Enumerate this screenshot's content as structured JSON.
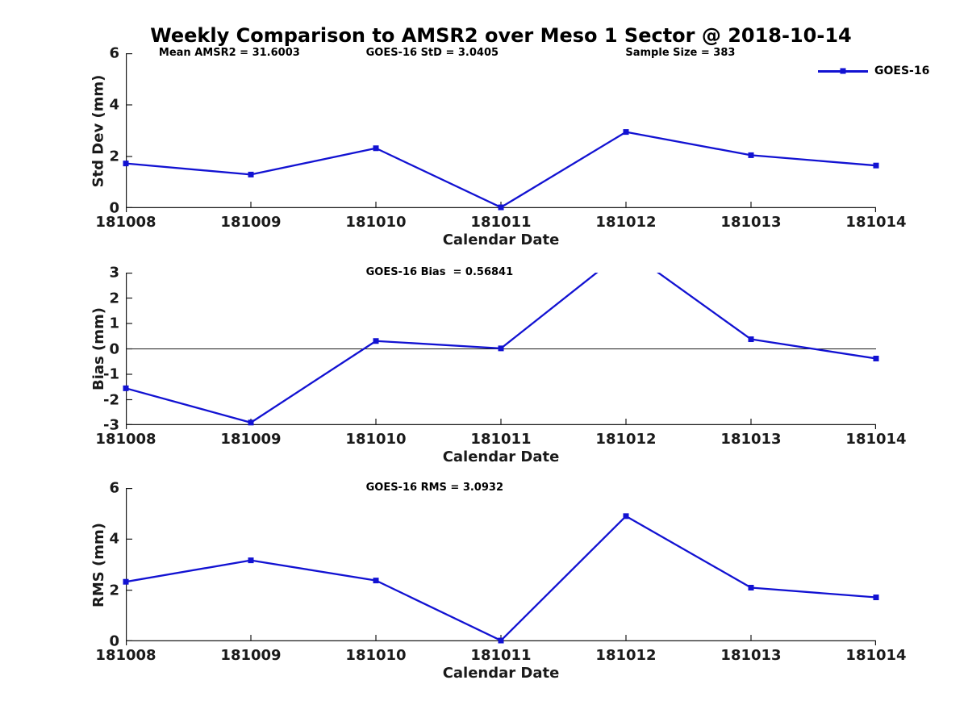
{
  "chart_data": {
    "type": "line",
    "title": "Weekly Comparison to AMSR2 over Meso 1 Sector @ 2018-10-14",
    "xlabel": "Calendar Date",
    "categories": [
      "181008",
      "181009",
      "181010",
      "181011",
      "181012",
      "181013",
      "181014"
    ],
    "legend": {
      "label": "GOES-16",
      "position": "top-right"
    },
    "line_color": "#1212d2",
    "axis_color": "#1a1a1a",
    "grid": false,
    "subplots": [
      {
        "name": "std-dev",
        "ylabel": "Std Dev (mm)",
        "ylim": [
          0,
          6
        ],
        "yticks": [
          0,
          2,
          4,
          6
        ],
        "annotations": [
          "Mean AMSR2 = 31.6003",
          "GOES-16 StD = 3.0405",
          "Sample Size = 383"
        ],
        "series": [
          {
            "name": "GOES-16",
            "values": [
              1.73,
              1.3,
              2.32,
              0.03,
              2.95,
              2.05,
              1.65
            ]
          }
        ]
      },
      {
        "name": "bias",
        "ylabel": "Bias (mm)",
        "ylim": [
          -3,
          3
        ],
        "yticks": [
          3,
          2,
          1,
          0,
          -1,
          -2,
          -3
        ],
        "zero_line": true,
        "annotations": [
          "GOES-16 Bias  = 0.56841"
        ],
        "series": [
          {
            "name": "GOES-16",
            "values": [
              -1.55,
              -2.9,
              0.31,
              0.02,
              3.91,
              0.38,
              -0.38
            ]
          }
        ]
      },
      {
        "name": "rms",
        "ylabel": "RMS (mm)",
        "ylim": [
          0,
          6
        ],
        "yticks": [
          0,
          2,
          4,
          6
        ],
        "annotations": [
          "GOES-16 RMS = 3.0932"
        ],
        "series": [
          {
            "name": "GOES-16",
            "values": [
              2.33,
              3.17,
              2.38,
              0.03,
              4.9,
              2.1,
              1.72
            ]
          }
        ]
      }
    ]
  }
}
